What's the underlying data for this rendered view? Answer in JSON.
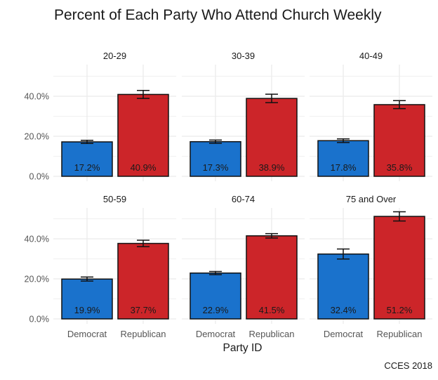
{
  "chart_data": {
    "type": "bar",
    "title": "Percent of Each Party Who Attend Church Weekly",
    "xlabel": "Party ID",
    "ylabel": "",
    "caption": "CCES 2018",
    "ylim": [
      0,
      0.56
    ],
    "yticks": [
      0,
      0.2,
      0.4
    ],
    "ytick_labels": [
      "0.0%",
      "20.0%",
      "40.0%"
    ],
    "minor_gridlines": [
      0.1,
      0.3,
      0.5
    ],
    "grid": true,
    "categories": [
      "Democrat",
      "Republican"
    ],
    "colors": {
      "Democrat": "#1a72cc",
      "Republican": "#cc2529"
    },
    "facets": [
      {
        "label": "20-29",
        "values": [
          0.172,
          0.409
        ],
        "labels": [
          "17.2%",
          "40.9%"
        ],
        "error": [
          [
            0.164,
            0.18
          ],
          [
            0.389,
            0.429
          ]
        ]
      },
      {
        "label": "30-39",
        "values": [
          0.173,
          0.389
        ],
        "labels": [
          "17.3%",
          "38.9%"
        ],
        "error": [
          [
            0.165,
            0.181
          ],
          [
            0.368,
            0.41
          ]
        ]
      },
      {
        "label": "40-49",
        "values": [
          0.178,
          0.358
        ],
        "labels": [
          "17.8%",
          "35.8%"
        ],
        "error": [
          [
            0.169,
            0.187
          ],
          [
            0.338,
            0.378
          ]
        ]
      },
      {
        "label": "50-59",
        "values": [
          0.199,
          0.377
        ],
        "labels": [
          "19.9%",
          "37.7%"
        ],
        "error": [
          [
            0.189,
            0.209
          ],
          [
            0.361,
            0.393
          ]
        ]
      },
      {
        "label": "60-74",
        "values": [
          0.229,
          0.415
        ],
        "labels": [
          "22.9%",
          "41.5%"
        ],
        "error": [
          [
            0.221,
            0.237
          ],
          [
            0.404,
            0.426
          ]
        ]
      },
      {
        "label": "75 and Over",
        "values": [
          0.324,
          0.512
        ],
        "labels": [
          "32.4%",
          "51.2%"
        ],
        "error": [
          [
            0.299,
            0.349
          ],
          [
            0.489,
            0.535
          ]
        ]
      }
    ]
  }
}
